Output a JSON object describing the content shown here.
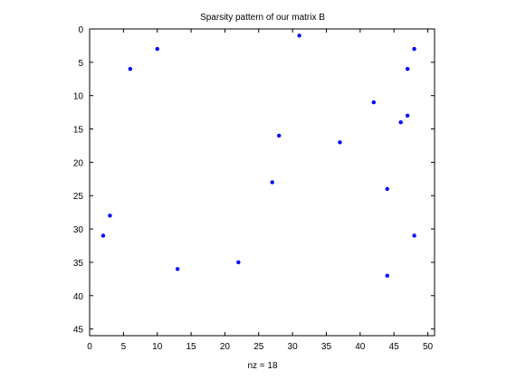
{
  "chart_data": {
    "type": "scatter",
    "title": "Sparsity pattern of our matrix B",
    "xlabel": "nz = 18",
    "ylabel": "",
    "xlim": [
      0,
      51
    ],
    "ylim": [
      46,
      0
    ],
    "y_axis_inverted": true,
    "grid": false,
    "legend": "none",
    "x_ticks": [
      "0",
      "5",
      "10",
      "15",
      "20",
      "25",
      "30",
      "35",
      "40",
      "45",
      "50"
    ],
    "y_ticks": [
      "0",
      "5",
      "10",
      "15",
      "20",
      "25",
      "30",
      "35",
      "40",
      "45"
    ],
    "marker_color": "#0000ff",
    "points": [
      {
        "x": 31,
        "y": 1
      },
      {
        "x": 10,
        "y": 3
      },
      {
        "x": 48,
        "y": 3
      },
      {
        "x": 6,
        "y": 6
      },
      {
        "x": 47,
        "y": 6
      },
      {
        "x": 42,
        "y": 11
      },
      {
        "x": 47,
        "y": 13
      },
      {
        "x": 46,
        "y": 14
      },
      {
        "x": 28,
        "y": 16
      },
      {
        "x": 37,
        "y": 17
      },
      {
        "x": 27,
        "y": 23
      },
      {
        "x": 44,
        "y": 24
      },
      {
        "x": 3,
        "y": 28
      },
      {
        "x": 2,
        "y": 31
      },
      {
        "x": 48,
        "y": 31
      },
      {
        "x": 22,
        "y": 35
      },
      {
        "x": 13,
        "y": 36
      },
      {
        "x": 44,
        "y": 37
      }
    ]
  }
}
